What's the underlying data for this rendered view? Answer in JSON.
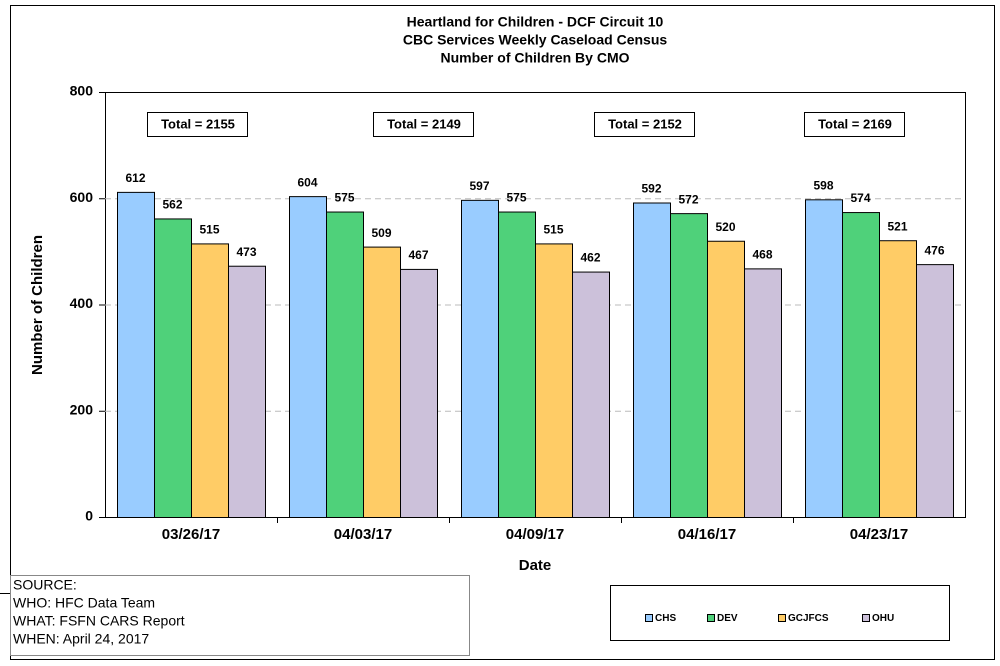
{
  "chart_data": {
    "type": "bar",
    "title": "Heartland for Children - DCF Circuit 10",
    "subtitle": [
      "CBC Services Weekly Caseload Census",
      "Number of Children By CMO"
    ],
    "xlabel": "Date",
    "ylabel": "Number of Children",
    "categories": [
      "03/26/17",
      "04/03/17",
      "04/09/17",
      "04/16/17",
      "04/23/17"
    ],
    "series": [
      {
        "name": "CHS",
        "color": "#99ccff",
        "values": [
          612,
          604,
          597,
          592,
          598
        ]
      },
      {
        "name": "DEV",
        "color": "#4fd17a",
        "values": [
          562,
          575,
          575,
          572,
          574
        ]
      },
      {
        "name": "GCJFCS",
        "color": "#ffcc66",
        "values": [
          515,
          509,
          515,
          520,
          521
        ]
      },
      {
        "name": "OHU",
        "color": "#ccc1da",
        "values": [
          473,
          467,
          462,
          468,
          476
        ]
      }
    ],
    "annotations": [
      "Total = 2155",
      "Total = 2149",
      "Total = 2152",
      "Total = 2169"
    ],
    "ylim": [
      0,
      800
    ],
    "yticks": [
      0,
      200,
      400,
      600,
      800
    ],
    "grid": true,
    "source": [
      "SOURCE:",
      "WHO:  HFC Data Team",
      "WHAT: FSFN CARS Report",
      "WHEN: April 24, 2017"
    ]
  }
}
